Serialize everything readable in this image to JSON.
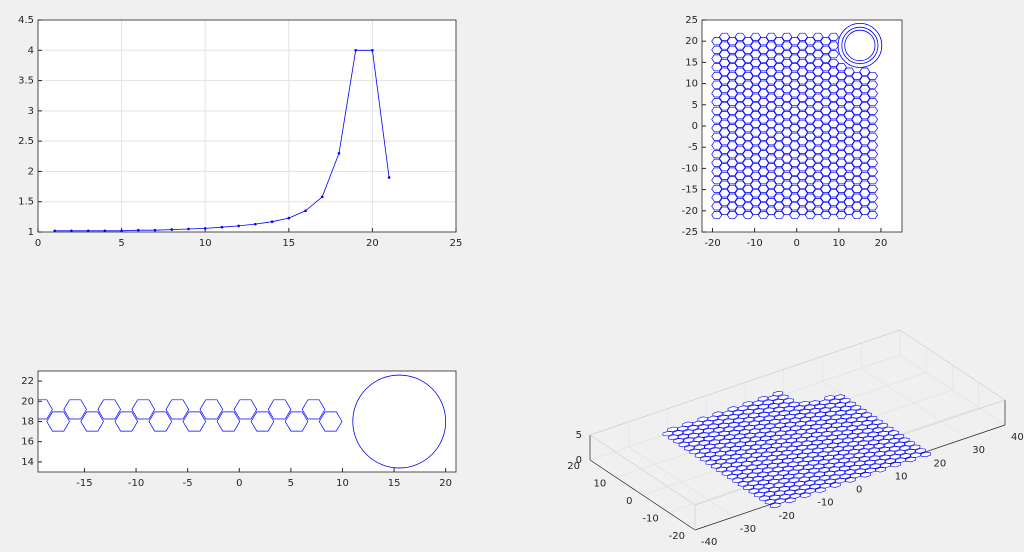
{
  "chart_data": [
    {
      "type": "line",
      "x": [
        1,
        2,
        3,
        4,
        5,
        6,
        7,
        8,
        9,
        10,
        11,
        12,
        13,
        14,
        15,
        16,
        17,
        18,
        19,
        20,
        21
      ],
      "values": [
        1.02,
        1.02,
        1.02,
        1.02,
        1.02,
        1.03,
        1.03,
        1.04,
        1.05,
        1.06,
        1.08,
        1.1,
        1.13,
        1.17,
        1.23,
        1.35,
        1.58,
        2.3,
        4.0,
        4.0,
        1.9
      ],
      "color": "#0000ff",
      "xlim": [
        0,
        25
      ],
      "xticks": [
        0,
        5,
        10,
        15,
        20,
        25
      ],
      "ylim": [
        1,
        4.5
      ],
      "yticks": [
        1,
        1.5,
        2,
        2.5,
        3,
        3.5,
        4,
        4.5
      ],
      "grid": true
    },
    {
      "type": "mesh",
      "color": "#0000ff",
      "xlim": [
        -22.5,
        25
      ],
      "xticks": [
        -20,
        -10,
        0,
        10,
        20
      ],
      "ylim": [
        -25,
        25
      ],
      "yticks": [
        -25,
        -20,
        -15,
        -10,
        -5,
        0,
        5,
        10,
        15,
        20,
        25
      ],
      "grid": false
    },
    {
      "type": "strip",
      "color": "#0000ff",
      "xlim": [
        -19.5,
        21
      ],
      "xticks": [
        -15,
        -10,
        -5,
        0,
        5,
        10,
        15,
        20
      ],
      "ylim": [
        13,
        23
      ],
      "yticks": [
        14,
        16,
        18,
        20,
        22
      ],
      "grid": false
    },
    {
      "type": "mesh3d",
      "color": "#0000ff",
      "xlim": [
        -40,
        40
      ],
      "xticks": [
        -40,
        -30,
        -20,
        -10,
        0,
        10,
        20,
        30,
        40
      ],
      "ylim": [
        -20,
        20
      ],
      "yticks": [
        -20,
        -10,
        0,
        10,
        20
      ],
      "zlim": [
        0,
        5
      ],
      "zticks": [
        0,
        5
      ],
      "grid": true
    }
  ]
}
